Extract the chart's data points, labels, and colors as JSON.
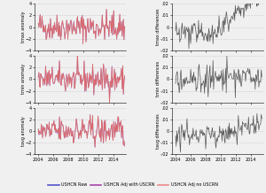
{
  "left_ylabels": [
    "tmax anomaly",
    "tmin anomaly",
    "tavg anomaly"
  ],
  "right_ylabels": [
    "tmax differences",
    "tmin differences",
    "tavg differences"
  ],
  "left_ylim": [
    -4,
    4
  ],
  "right_ylim": [
    -0.02,
    0.02
  ],
  "left_yticks": [
    -4,
    -2,
    0,
    2,
    4
  ],
  "right_yticks": [
    -0.02,
    -0.01,
    0,
    0.01,
    0.02
  ],
  "xmin": 2003.5,
  "xmax": 2015.7,
  "xticks": [
    2004,
    2006,
    2008,
    2010,
    2012,
    2014
  ],
  "legend_labels": [
    "USHCN Raw",
    "USHCN Adj with USCRN",
    "USHCN Adj no USCRN"
  ],
  "legend_colors": [
    "#5555cc",
    "#aa44aa",
    "#ee8888"
  ],
  "right_line_color": "#555555",
  "left_raw_color": "#5555cc",
  "left_adj_uscrn_color": "#aa44aa",
  "left_adj_nouscrn_color": "#dd6666",
  "background_color": "#f0f0f0",
  "seed": 42,
  "n_points": 144
}
